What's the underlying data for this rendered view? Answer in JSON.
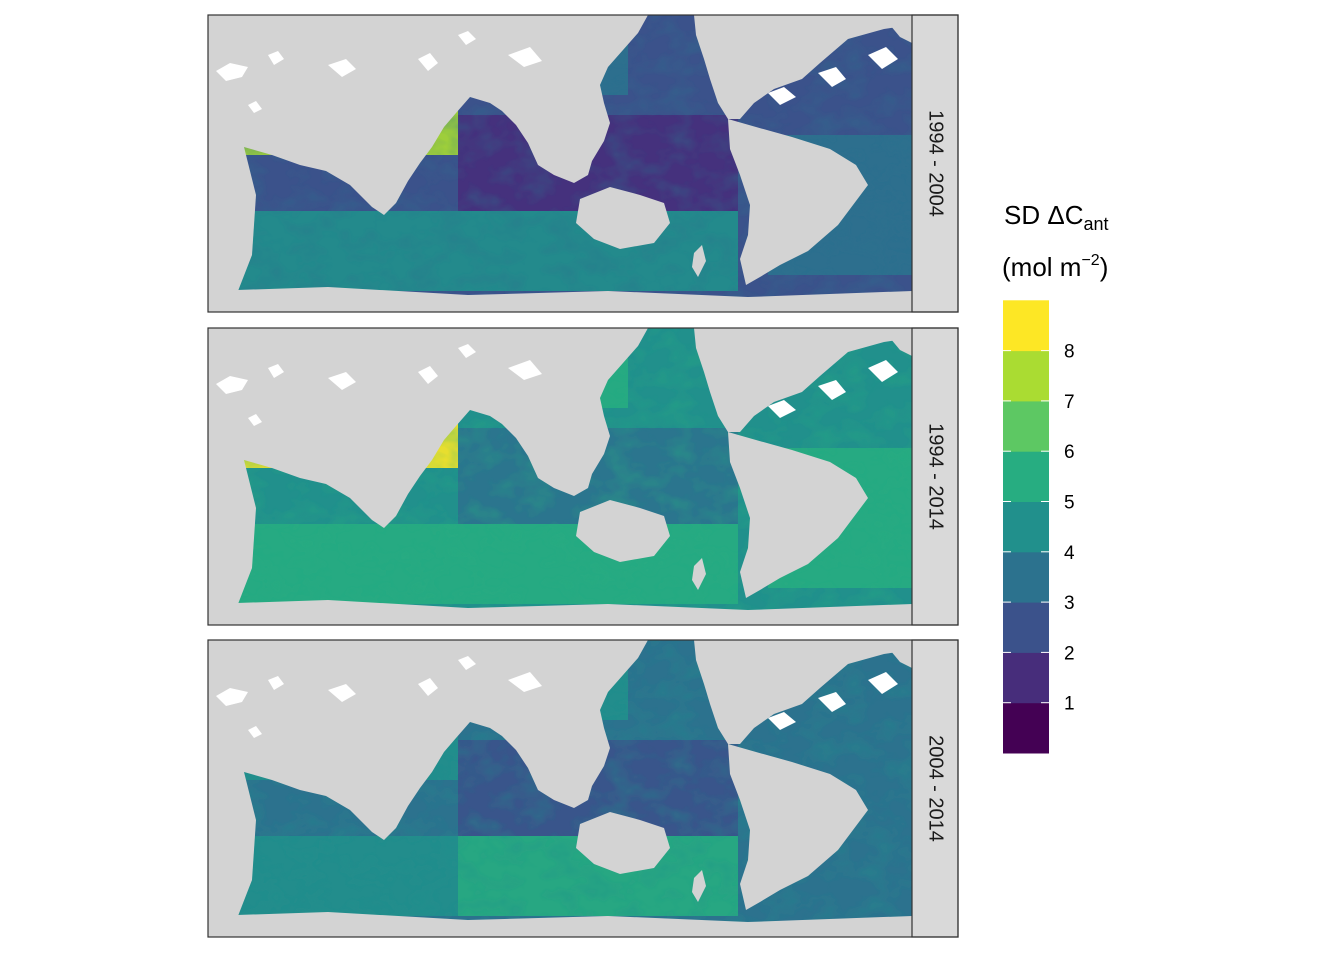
{
  "legend": {
    "title_main": "SD ΔC",
    "title_sub": "ant",
    "unit_open": "(mol m",
    "unit_sup": "−2",
    "unit_close": ")",
    "bins": [
      {
        "color": "#440154"
      },
      {
        "color": "#472D7B"
      },
      {
        "color": "#3B528B"
      },
      {
        "color": "#2C728E"
      },
      {
        "color": "#21908C"
      },
      {
        "color": "#27AD81"
      },
      {
        "color": "#5DC863"
      },
      {
        "color": "#AADC32"
      },
      {
        "color": "#FDE725"
      }
    ],
    "tick_labels": [
      "1",
      "2",
      "3",
      "4",
      "5",
      "6",
      "7",
      "8"
    ]
  },
  "panels": [
    {
      "strip": "1994 - 2004",
      "base_level": 2.3
    },
    {
      "strip": "1994 - 2014",
      "base_level": 4.0
    },
    {
      "strip": "2004 - 2014",
      "base_level": 2.8
    }
  ],
  "colors": {
    "land": "#D3D3D3",
    "strip_bg": "#D9D9D9",
    "panel_border": "#333333",
    "ice": "#FFFFFF"
  }
}
